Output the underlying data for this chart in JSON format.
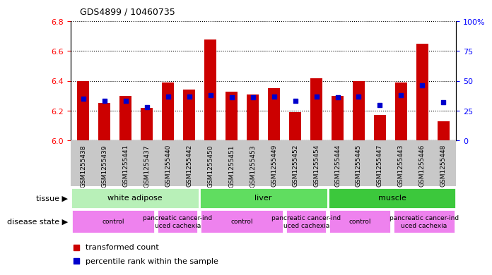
{
  "title": "GDS4899 / 10460735",
  "samples": [
    "GSM1255438",
    "GSM1255439",
    "GSM1255441",
    "GSM1255437",
    "GSM1255440",
    "GSM1255442",
    "GSM1255450",
    "GSM1255451",
    "GSM1255453",
    "GSM1255449",
    "GSM1255452",
    "GSM1255454",
    "GSM1255444",
    "GSM1255445",
    "GSM1255447",
    "GSM1255443",
    "GSM1255446",
    "GSM1255448"
  ],
  "transformed_count": [
    6.4,
    6.25,
    6.3,
    6.22,
    6.39,
    6.34,
    6.68,
    6.33,
    6.31,
    6.35,
    6.19,
    6.42,
    6.3,
    6.4,
    6.17,
    6.39,
    6.65,
    6.13
  ],
  "percentile_rank": [
    35,
    33,
    33,
    28,
    37,
    37,
    38,
    36,
    36,
    37,
    33,
    37,
    36,
    37,
    30,
    38,
    46,
    32
  ],
  "bar_color": "#cc0000",
  "dot_color": "#0000cc",
  "bar_base": 6.0,
  "ylim_left": [
    6.0,
    6.8
  ],
  "ylim_right": [
    0,
    100
  ],
  "yticks_left": [
    6.0,
    6.2,
    6.4,
    6.6,
    6.8
  ],
  "yticks_right": [
    0,
    25,
    50,
    75,
    100
  ],
  "tissue_groups": [
    {
      "label": "white adipose",
      "start": 0,
      "end": 6,
      "color": "#b8f0b8"
    },
    {
      "label": "liver",
      "start": 6,
      "end": 12,
      "color": "#60dd60"
    },
    {
      "label": "muscle",
      "start": 12,
      "end": 18,
      "color": "#3cc83c"
    }
  ],
  "disease_groups": [
    {
      "label": "control",
      "start": 0,
      "end": 4
    },
    {
      "label": "pancreatic cancer-ind\nuced cachexia",
      "start": 4,
      "end": 6
    },
    {
      "label": "control",
      "start": 6,
      "end": 10
    },
    {
      "label": "pancreatic cancer-ind\nuced cachexia",
      "start": 10,
      "end": 12
    },
    {
      "label": "control",
      "start": 12,
      "end": 15
    },
    {
      "label": "pancreatic cancer-ind\nuced cachexia",
      "start": 15,
      "end": 18
    }
  ],
  "disease_color": "#ee82ee",
  "xtick_bg_color": "#c8c8c8",
  "plot_bg_color": "#ffffff"
}
